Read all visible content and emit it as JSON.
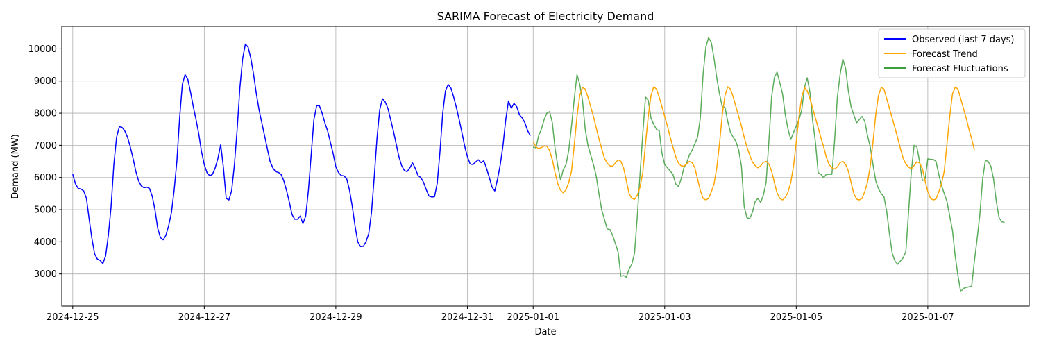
{
  "chart_data": {
    "type": "line",
    "title": "SARIMA Forecast of Electricity Demand",
    "xlabel": "Date",
    "ylabel": "Demand (MW)",
    "xlim": [
      "2024-12-24T20:00",
      "2025-01-08T13:00"
    ],
    "ylim": [
      2000,
      10700
    ],
    "x_ticks": [
      "2024-12-25",
      "2024-12-27",
      "2024-12-29",
      "2024-12-31",
      "2025-01-01",
      "2025-01-03",
      "2025-01-05",
      "2025-01-07"
    ],
    "y_ticks": [
      3000,
      4000,
      5000,
      6000,
      7000,
      8000,
      9000,
      10000
    ],
    "grid": true,
    "legend": "top-right",
    "series": [
      {
        "name": "Observed (last 7 days)",
        "color": "#0000ff",
        "x_start": "2024-12-25T00:00",
        "step_hours": 1,
        "values": [
          6100,
          5800,
          5660,
          5640,
          5580,
          5350,
          4700,
          4100,
          3620,
          3460,
          3420,
          3320,
          3560,
          4200,
          5100,
          6400,
          7250,
          7580,
          7560,
          7450,
          7250,
          6950,
          6600,
          6200,
          5900,
          5740,
          5680,
          5700,
          5660,
          5420,
          5000,
          4420,
          4130,
          4060,
          4200,
          4500,
          4900,
          5600,
          6500,
          7850,
          8900,
          9200,
          9050,
          8650,
          8200,
          7800,
          7350,
          6800,
          6400,
          6150,
          6050,
          6100,
          6300,
          6600,
          7020,
          6300,
          5350,
          5300,
          5600,
          6400,
          7500,
          8800,
          9700,
          10150,
          10050,
          9700,
          9200,
          8600,
          8100,
          7700,
          7300,
          6900,
          6500,
          6300,
          6180,
          6160,
          6100,
          5900,
          5600,
          5250,
          4850,
          4700,
          4700,
          4800,
          4560,
          4800,
          5600,
          6700,
          7800,
          8230,
          8230,
          8000,
          7700,
          7450,
          7100,
          6750,
          6330,
          6150,
          6060,
          6050,
          5950,
          5600,
          5100,
          4500,
          4000,
          3850,
          3860,
          4000,
          4250,
          4900,
          6000,
          7200,
          8100,
          8450,
          8350,
          8150,
          7800,
          7450,
          7050,
          6650,
          6370,
          6220,
          6180,
          6300,
          6450,
          6280,
          6060,
          6000,
          5850,
          5620,
          5420,
          5390,
          5400,
          5820,
          6800,
          8000,
          8700,
          8890,
          8780,
          8500,
          8170,
          7800,
          7400,
          6980,
          6650,
          6420,
          6400,
          6480,
          6550,
          6460,
          6520,
          6280,
          6000,
          5700,
          5580,
          5950,
          6400,
          7000,
          7800,
          8380,
          8150,
          8300,
          8200,
          7950,
          7850,
          7700,
          7450,
          7300
        ]
      },
      {
        "name": "Forecast Trend",
        "color": "#ffa500",
        "x_start": "2025-01-01T00:00",
        "step_hours": 1,
        "values": [
          7120,
          6950,
          6900,
          6930,
          6980,
          6970,
          6840,
          6550,
          6150,
          5800,
          5600,
          5520,
          5620,
          5850,
          6200,
          7000,
          7900,
          8550,
          8800,
          8750,
          8500,
          8200,
          7900,
          7550,
          7200,
          6900,
          6600,
          6450,
          6360,
          6350,
          6450,
          6550,
          6500,
          6300,
          5900,
          5500,
          5350,
          5320,
          5450,
          5700,
          6150,
          7050,
          7900,
          8550,
          8820,
          8750,
          8500,
          8200,
          7900,
          7600,
          7250,
          6950,
          6650,
          6450,
          6360,
          6350,
          6420,
          6500,
          6460,
          6300,
          5950,
          5600,
          5350,
          5300,
          5350,
          5550,
          5800,
          6300,
          7050,
          7950,
          8550,
          8820,
          8750,
          8500,
          8200,
          7900,
          7600,
          7250,
          6950,
          6700,
          6480,
          6370,
          6300,
          6360,
          6470,
          6500,
          6420,
          6200,
          5850,
          5520,
          5350,
          5300,
          5380,
          5550,
          5850,
          6350,
          7100,
          7900,
          8500,
          8800,
          8700,
          8450,
          8150,
          7850,
          7550,
          7230,
          6950,
          6620,
          6400,
          6300,
          6260,
          6330,
          6460,
          6500,
          6410,
          6200,
          5850,
          5500,
          5330,
          5300,
          5350,
          5560,
          5850,
          6350,
          7100,
          7950,
          8550,
          8800,
          8750,
          8450,
          8150,
          7850,
          7550,
          7230,
          6900,
          6600,
          6420,
          6320,
          6270,
          6370,
          6490,
          6450,
          6280,
          5900,
          5560,
          5350,
          5300,
          5330,
          5550,
          5800,
          6200,
          7050,
          7900,
          8600,
          8810,
          8750,
          8450,
          8150,
          7850,
          7500,
          7200,
          6850
        ]
      },
      {
        "name": "Forecast Fluctuations",
        "color": "#3d9e3d",
        "x_start": "2025-01-01T00:00",
        "step_hours": 1,
        "values": [
          6950,
          6920,
          7300,
          7500,
          7800,
          8000,
          8050,
          7700,
          6900,
          6350,
          5920,
          6250,
          6400,
          6850,
          7600,
          8450,
          9200,
          8900,
          8400,
          7500,
          7000,
          6700,
          6400,
          6050,
          5500,
          5000,
          4700,
          4400,
          4380,
          4200,
          3950,
          3680,
          2930,
          2950,
          2900,
          3150,
          3300,
          3650,
          4800,
          6100,
          7350,
          8500,
          8400,
          7850,
          7650,
          7500,
          7450,
          6750,
          6400,
          6300,
          6200,
          6100,
          5800,
          5720,
          5950,
          6300,
          6450,
          6700,
          6850,
          7050,
          7250,
          7850,
          9200,
          10050,
          10350,
          10200,
          9700,
          9100,
          8600,
          8200,
          8180,
          7750,
          7400,
          7250,
          7120,
          6850,
          6350,
          5100,
          4750,
          4720,
          4920,
          5250,
          5350,
          5220,
          5450,
          5850,
          7100,
          8500,
          9100,
          9280,
          8950,
          8600,
          7950,
          7500,
          7180,
          7400,
          7600,
          7800,
          8100,
          8800,
          9100,
          8650,
          7750,
          7100,
          6150,
          6100,
          6000,
          6100,
          6100,
          6100,
          7150,
          8500,
          9200,
          9680,
          9400,
          8700,
          8200,
          7950,
          7700,
          7800,
          7900,
          7750,
          7300,
          6950,
          6400,
          5900,
          5650,
          5500,
          5400,
          4950,
          4250,
          3650,
          3400,
          3300,
          3400,
          3500,
          3700,
          4950,
          6200,
          7000,
          6950,
          6500,
          5900,
          5950,
          6580,
          6560,
          6560,
          6500,
          6100,
          5750,
          5500,
          5250,
          4800,
          4350,
          3550,
          2950,
          2450,
          2550,
          2580,
          2600,
          2620,
          3400,
          4100,
          4850,
          5950,
          6530,
          6500,
          6350,
          5950,
          5250,
          4750,
          4620,
          4600
        ]
      }
    ]
  }
}
